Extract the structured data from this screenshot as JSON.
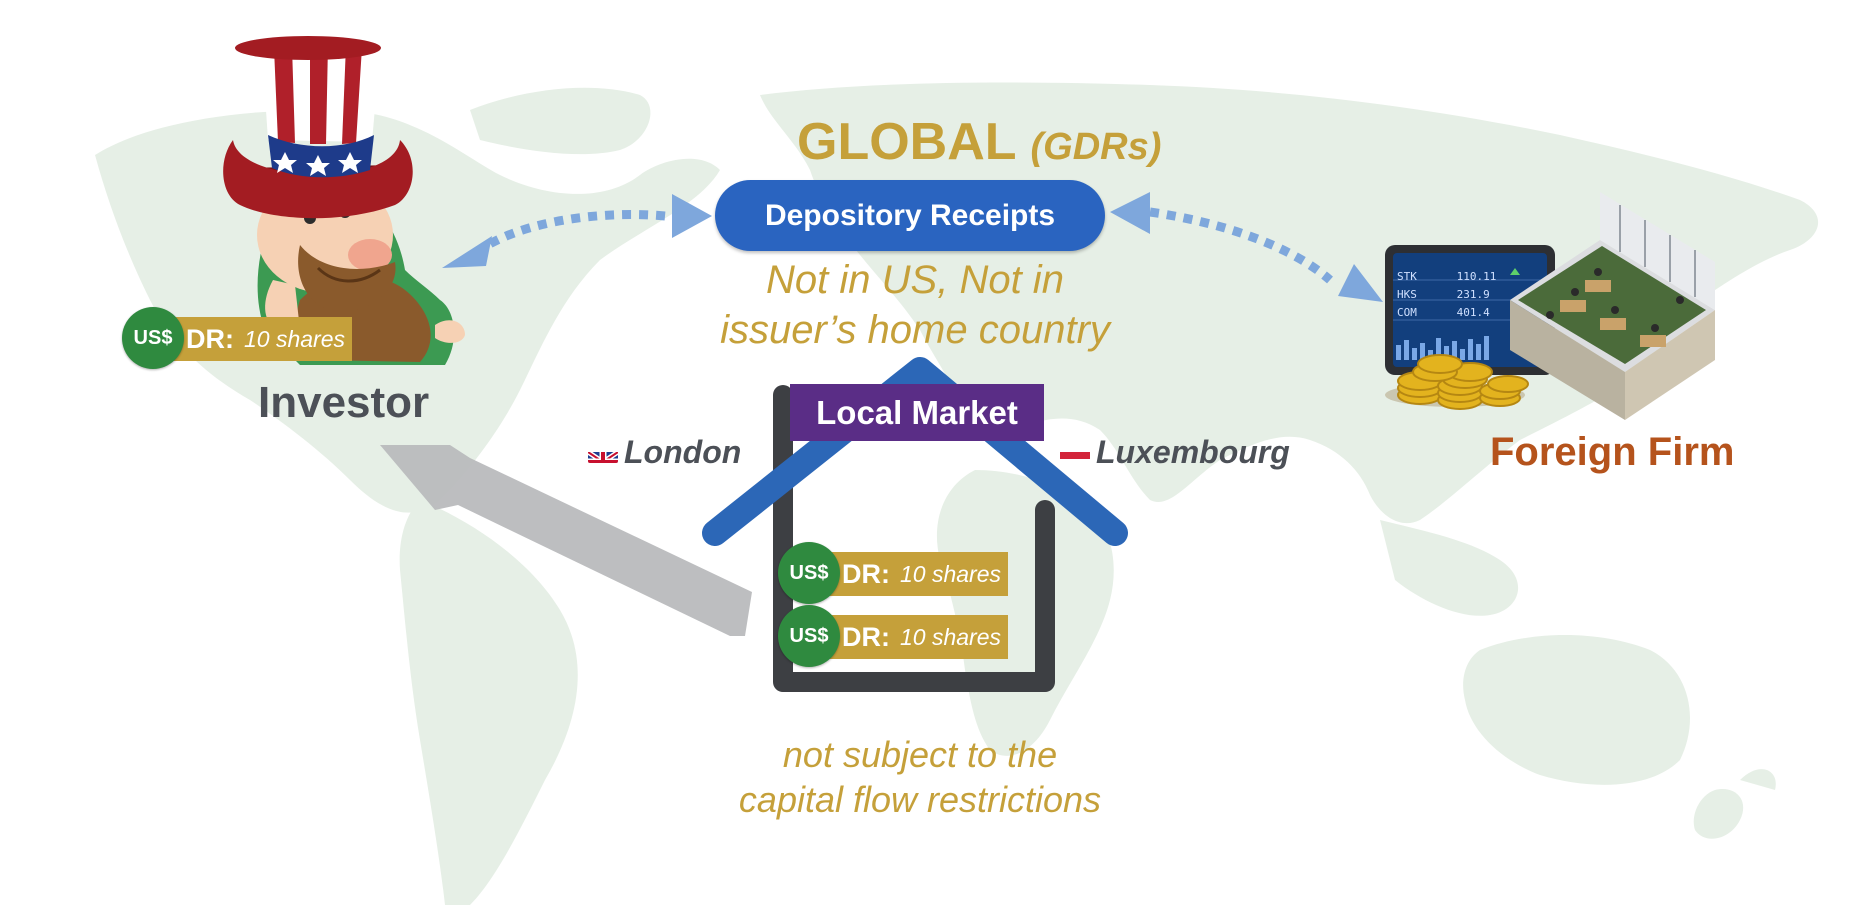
{
  "colors": {
    "gold": "#c5a03a",
    "blue": "#2a64c0",
    "purple": "#5a2d86",
    "green": "#2f8a3f",
    "rust": "#b5531c",
    "dark_grey": "#4c5057",
    "map": "#e6efe6",
    "dotted_arrow": "#7ea7dc"
  },
  "title": {
    "main": "GLOBAL",
    "sub": "(GDRs)"
  },
  "pill_label": "Depository Receipts",
  "note_top": [
    "Not in US, Not in",
    "issuer’s home country"
  ],
  "investor": {
    "label": "Investor",
    "badge": {
      "coin": "US$",
      "key": "DR:",
      "value": "10 shares"
    }
  },
  "firm": {
    "label": "Foreign Firm",
    "screen_rows": [
      {
        "code": "STK",
        "value": "110.11"
      },
      {
        "code": "HKS",
        "value": "231.9"
      },
      {
        "code": "COM",
        "value": "401.4"
      }
    ]
  },
  "local_market": {
    "label": "Local Market",
    "badges": [
      {
        "coin": "US$",
        "key": "DR:",
        "value": "10 shares"
      },
      {
        "coin": "US$",
        "key": "DR:",
        "value": "10 shares"
      }
    ]
  },
  "cities": {
    "left": "London",
    "right": "Luxembourg"
  },
  "note_bottom": [
    "not subject to the",
    "capital flow restrictions"
  ],
  "icons": [
    "world-map",
    "uncle-sam-investor-icon",
    "house-icon",
    "trading-screen-icon",
    "office-isometric-icon",
    "gold-coins-icon",
    "uk-flag-icon",
    "netherlands-flag-icon"
  ]
}
